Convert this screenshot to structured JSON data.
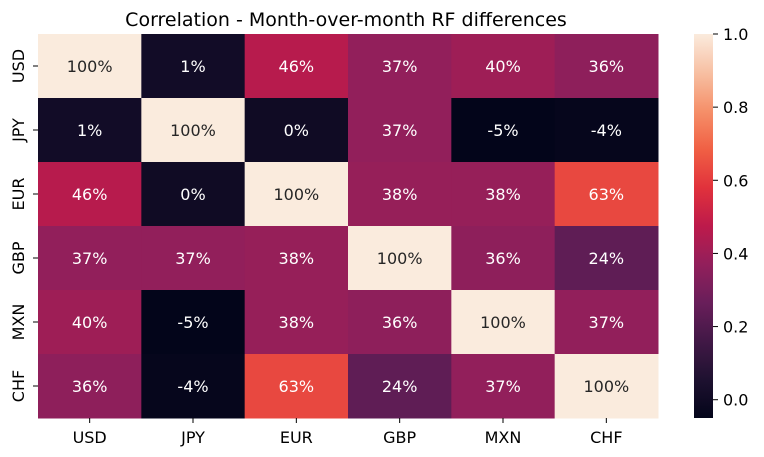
{
  "chart_data": {
    "type": "heatmap",
    "title": "Correlation - Month-over-month RF differences",
    "x_labels": [
      "USD",
      "JPY",
      "EUR",
      "GBP",
      "MXN",
      "CHF"
    ],
    "y_labels": [
      "USD",
      "JPY",
      "EUR",
      "GBP",
      "MXN",
      "CHF"
    ],
    "values": [
      [
        1.0,
        0.01,
        0.46,
        0.37,
        0.4,
        0.36
      ],
      [
        0.01,
        1.0,
        0.0,
        0.37,
        -0.05,
        -0.04
      ],
      [
        0.46,
        0.0,
        1.0,
        0.38,
        0.38,
        0.63
      ],
      [
        0.37,
        0.37,
        0.38,
        1.0,
        0.36,
        0.24
      ],
      [
        0.4,
        -0.05,
        0.38,
        0.36,
        1.0,
        0.37
      ],
      [
        0.36,
        -0.04,
        0.63,
        0.24,
        0.37,
        1.0
      ]
    ],
    "cell_labels": [
      [
        "100%",
        "1%",
        "46%",
        "37%",
        "40%",
        "36%"
      ],
      [
        "1%",
        "100%",
        "0%",
        "37%",
        "-5%",
        "-4%"
      ],
      [
        "46%",
        "0%",
        "100%",
        "38%",
        "38%",
        "63%"
      ],
      [
        "37%",
        "37%",
        "38%",
        "100%",
        "36%",
        "24%"
      ],
      [
        "40%",
        "-5%",
        "38%",
        "36%",
        "100%",
        "37%"
      ],
      [
        "36%",
        "-4%",
        "63%",
        "24%",
        "37%",
        "100%"
      ]
    ],
    "colorbar": {
      "vmin": -0.05,
      "vmax": 1.0,
      "ticks": [
        0.0,
        0.2,
        0.4,
        0.6,
        0.8,
        1.0
      ],
      "tick_labels": [
        "0.0",
        "0.2",
        "0.4",
        "0.6",
        "0.8",
        "1.0"
      ],
      "colormap": "rocket"
    }
  }
}
